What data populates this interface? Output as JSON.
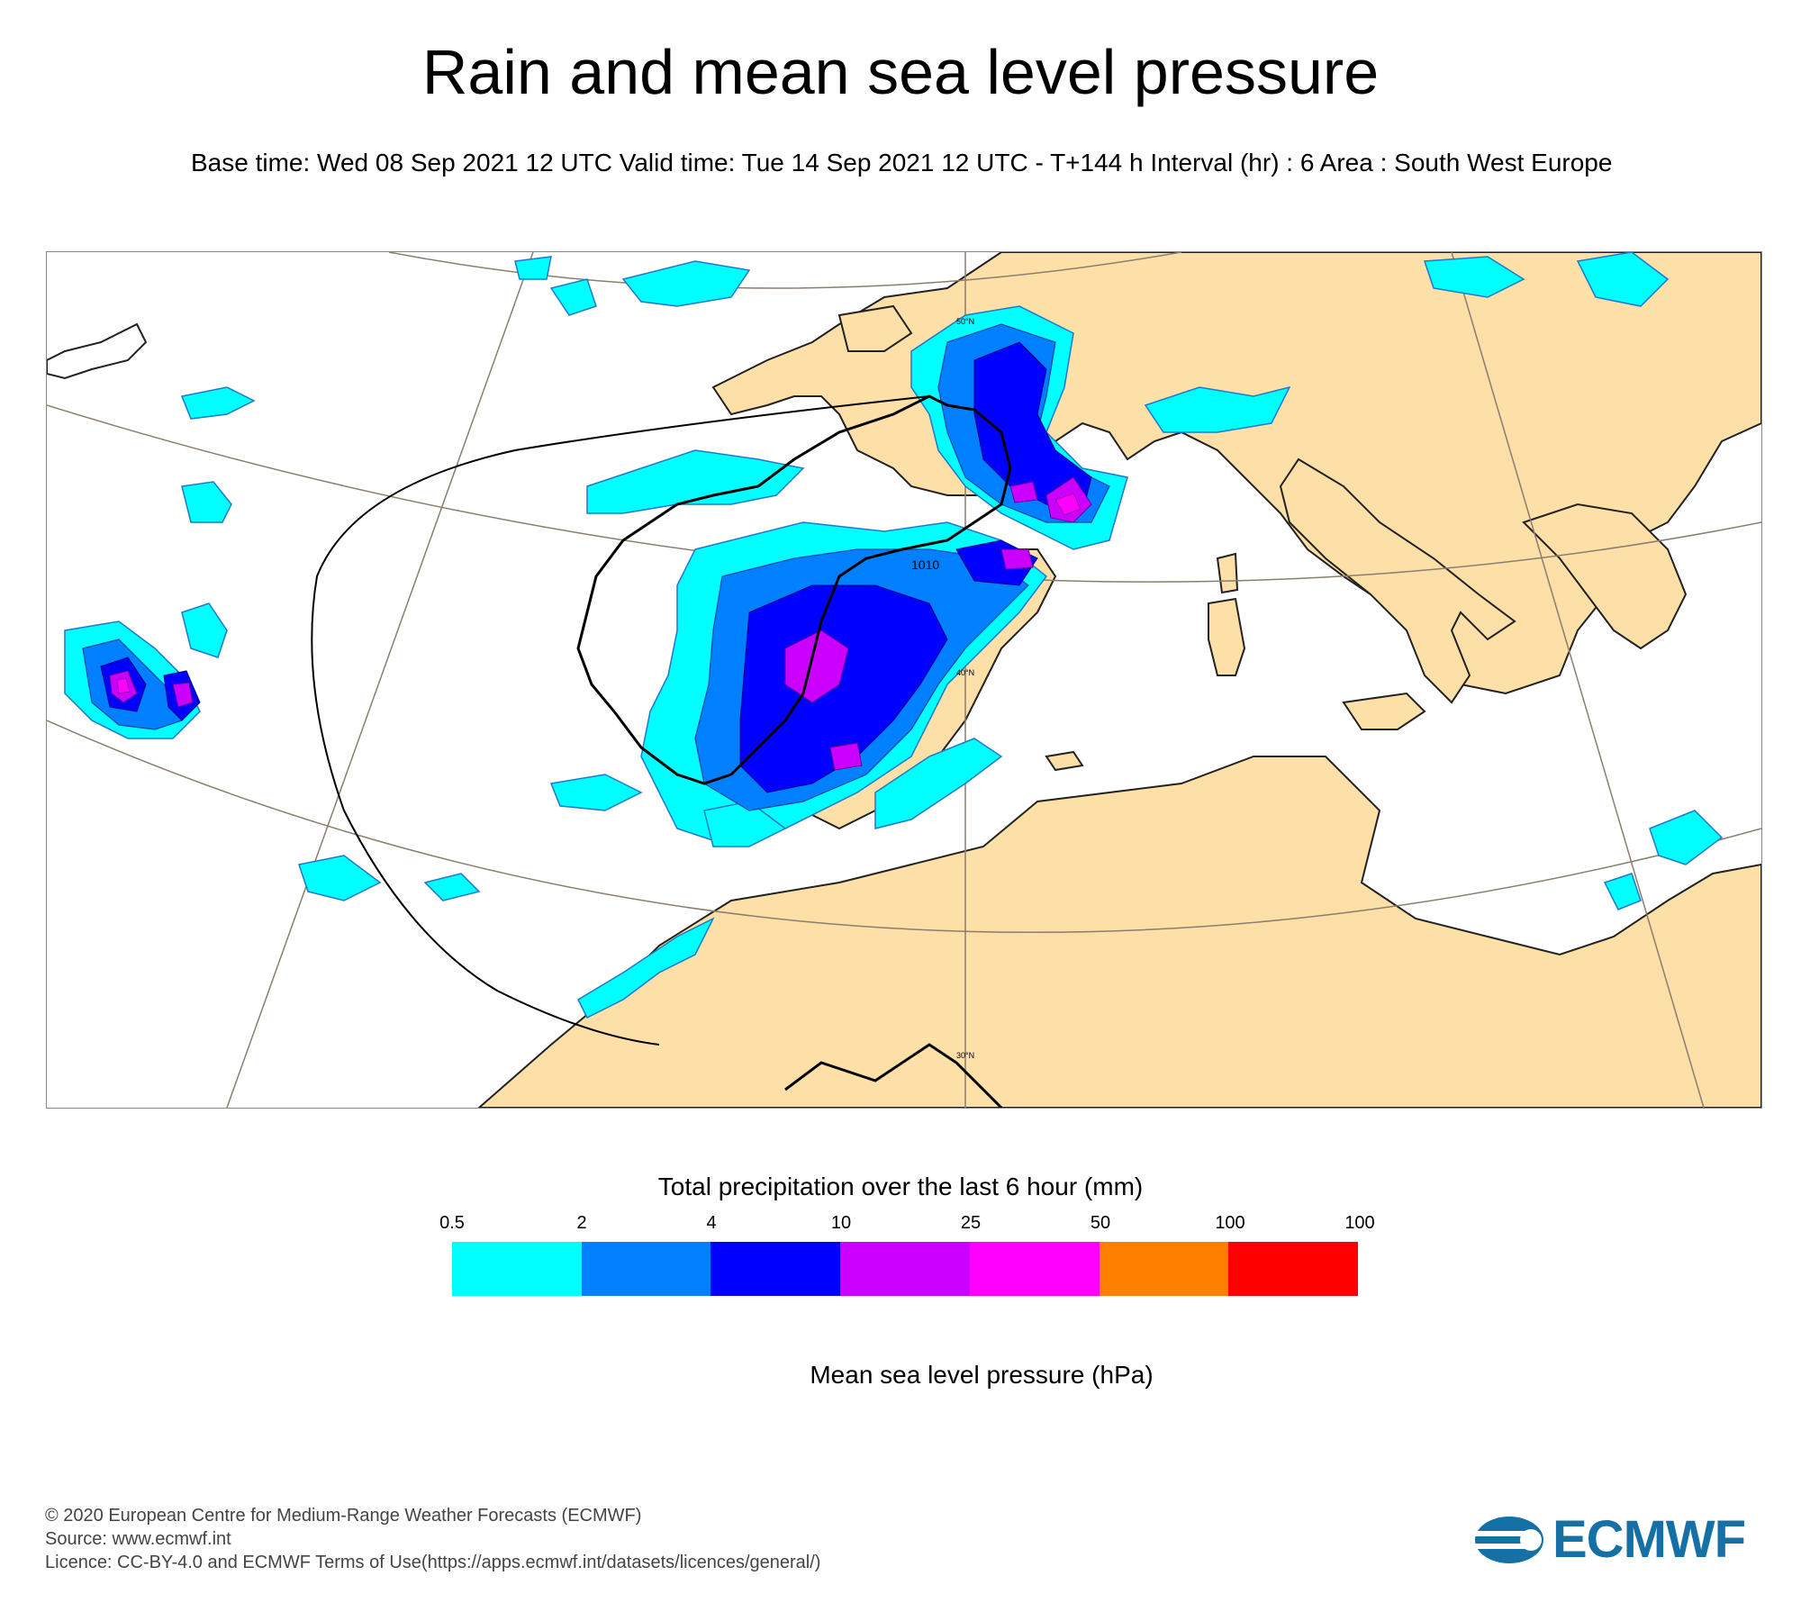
{
  "title": "Rain and mean sea level pressure",
  "subtitle": "Base time: Wed 08 Sep 2021 12 UTC Valid time: Tue 14 Sep 2021 12 UTC - T+144 h Interval (hr) : 6 Area : South West Europe",
  "map": {
    "isobar_label": "1010",
    "lat_labels": [
      "50°N",
      "40°N",
      "30°N"
    ],
    "colors": {
      "land": "#fddfa8",
      "sea": "#ffffff",
      "coast": "#222222",
      "graticule": "#8a7e6e",
      "isobar": "#000000"
    }
  },
  "legend": {
    "title": "Total precipitation over the last 6 hour (mm)",
    "ticks": [
      "0.5",
      "2",
      "4",
      "10",
      "25",
      "50",
      "100",
      "100"
    ],
    "colors": [
      "#00ffff",
      "#0080ff",
      "#0000ff",
      "#cc00ff",
      "#ff00ff",
      "#ff8000",
      "#ff0000"
    ]
  },
  "mslp_title": "Mean sea level pressure (hPa)",
  "footer": {
    "line1": "© 2020 European Centre for Medium-Range Weather Forecasts (ECMWF)",
    "line2": "Source: www.ecmwf.int",
    "line3": "Licence: CC-BY-4.0 and ECMWF Terms of Use(https://apps.ecmwf.int/datasets/licences/general/)"
  },
  "logo": {
    "text": "ECMWF",
    "color": "#1570a6"
  }
}
